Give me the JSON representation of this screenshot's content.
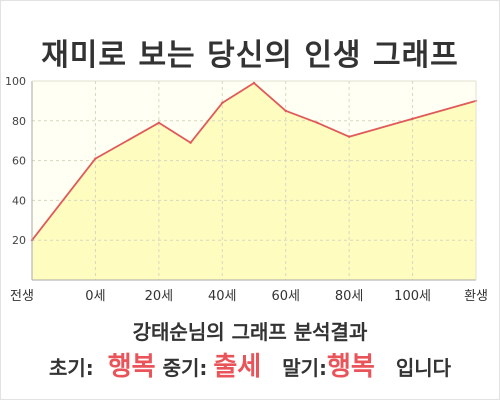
{
  "title": "재미로 보는 당신의 인생 그래프",
  "subtitle": "강태순님의 그래프 분석결과",
  "summary": {
    "early_label": "초기:",
    "early_value": "행복",
    "mid_label": "중기:",
    "mid_value": "출세",
    "late_label": "말기:",
    "late_value": "행복",
    "ending": "입니다"
  },
  "colors": {
    "line": "#e05a5a",
    "fill": "#fffcc0",
    "highlight": "#e8545a"
  },
  "chart_data": {
    "type": "area",
    "categories": [
      "전생",
      "0세",
      "20세",
      "40세",
      "60세",
      "80세",
      "100세",
      "환생"
    ],
    "y_ticks": [
      20,
      40,
      60,
      80,
      100
    ],
    "ylim": [
      0,
      100
    ],
    "grid": true,
    "points": [
      {
        "x": 0,
        "y": 20
      },
      {
        "x": 1,
        "y": 61
      },
      {
        "x": 2,
        "y": 79
      },
      {
        "x": 2.5,
        "y": 69
      },
      {
        "x": 3,
        "y": 89
      },
      {
        "x": 3.5,
        "y": 99
      },
      {
        "x": 4,
        "y": 85
      },
      {
        "x": 4.5,
        "y": 79
      },
      {
        "x": 5,
        "y": 72
      },
      {
        "x": 6,
        "y": 81
      },
      {
        "x": 7,
        "y": 90
      }
    ]
  }
}
